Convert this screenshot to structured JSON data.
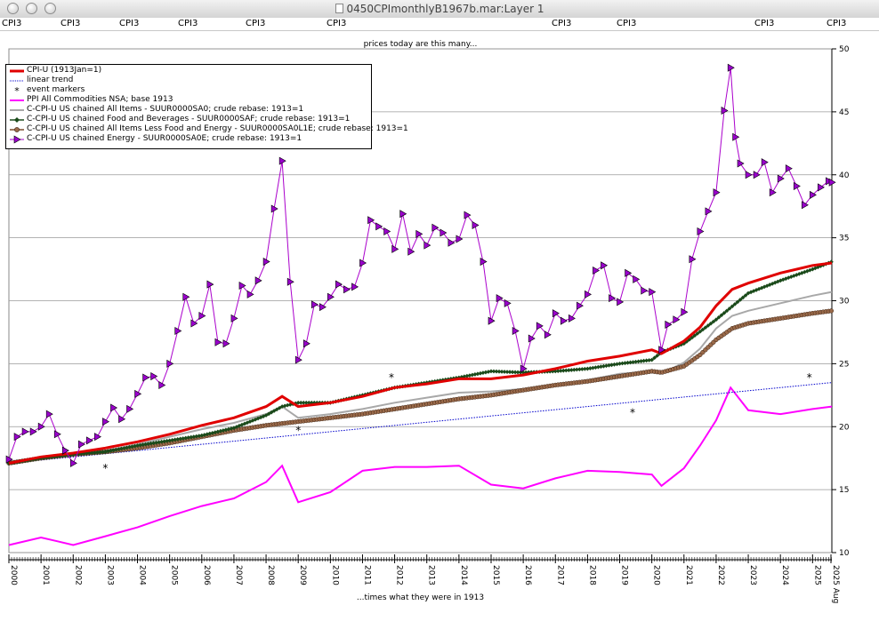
{
  "window": {
    "title": "0450CPImonthlyB1967b.mar:Layer 1",
    "buttons": [
      "close",
      "minimize",
      "zoom"
    ]
  },
  "ruler_labels": [
    "CPI3",
    "CPI3",
    "CPI3",
    "CPI3",
    "CPI3",
    "CPI3",
    "CPI3",
    "CPI3",
    "CPI3",
    "CPI3"
  ],
  "colors": {
    "cpi_u": "#e00000",
    "trend": "#0000cc",
    "ppi": "#ff00ff",
    "all_items": "#a8a8a8",
    "food": "#1a4a1a",
    "core": "#7a4a2a",
    "energy": "#aa00cc",
    "grid": "#9a9a9a"
  },
  "chart_data": {
    "type": "line",
    "title": "prices today are this many...",
    "xlabel": "...times what they were in 1913",
    "ylabel": "",
    "xlim": [
      2000.0,
      2025.6
    ],
    "ylim": [
      10,
      50
    ],
    "yticks": [
      10,
      15,
      20,
      25,
      30,
      35,
      40,
      45,
      50
    ],
    "xticks": [
      "2000",
      "2001",
      "2002",
      "2003",
      "2004",
      "2005",
      "2006",
      "2007",
      "2008",
      "2009",
      "2010",
      "2011",
      "2012",
      "2013",
      "2014",
      "2015",
      "2016",
      "2017",
      "2018",
      "2019",
      "2020",
      "2021",
      "2022",
      "2023",
      "2024",
      "2025",
      "2025 Aug"
    ],
    "legend_position": "top-left",
    "series": [
      {
        "name": "CPI-U (1913Jan=1)",
        "marker": "none",
        "points": [
          [
            2000,
            17.1
          ],
          [
            2001,
            17.6
          ],
          [
            2002,
            17.9
          ],
          [
            2003,
            18.3
          ],
          [
            2004,
            18.8
          ],
          [
            2005,
            19.4
          ],
          [
            2006,
            20.1
          ],
          [
            2007,
            20.7
          ],
          [
            2008,
            21.6
          ],
          [
            2008.5,
            22.4
          ],
          [
            2009,
            21.6
          ],
          [
            2010,
            21.9
          ],
          [
            2011,
            22.4
          ],
          [
            2012,
            23.1
          ],
          [
            2013,
            23.4
          ],
          [
            2014,
            23.8
          ],
          [
            2015,
            23.8
          ],
          [
            2016,
            24.1
          ],
          [
            2017,
            24.6
          ],
          [
            2018,
            25.2
          ],
          [
            2019,
            25.6
          ],
          [
            2020,
            26.1
          ],
          [
            2020.3,
            25.8
          ],
          [
            2021,
            26.8
          ],
          [
            2021.5,
            27.9
          ],
          [
            2022,
            29.6
          ],
          [
            2022.5,
            30.9
          ],
          [
            2023,
            31.4
          ],
          [
            2024,
            32.2
          ],
          [
            2025,
            32.8
          ],
          [
            2025.6,
            33.0
          ]
        ]
      },
      {
        "name": "linear trend",
        "marker": "none",
        "points": [
          [
            2000,
            17.1
          ],
          [
            2025.6,
            23.5
          ]
        ]
      },
      {
        "name": "event markers",
        "marker": "asterisk",
        "points": [
          [
            2003.0,
            16.7
          ],
          [
            2009.0,
            19.7
          ],
          [
            2011.9,
            23.9
          ],
          [
            2019.4,
            21.1
          ],
          [
            2024.9,
            23.9
          ]
        ]
      },
      {
        "name": "PPI All Commodities NSA; base 1913",
        "marker": "none",
        "points": [
          [
            2000,
            10.6
          ],
          [
            2001,
            11.2
          ],
          [
            2001.5,
            10.9
          ],
          [
            2002,
            10.6
          ],
          [
            2003,
            11.3
          ],
          [
            2004,
            12.0
          ],
          [
            2005,
            12.9
          ],
          [
            2006,
            13.7
          ],
          [
            2007,
            14.3
          ],
          [
            2008,
            15.6
          ],
          [
            2008.5,
            16.9
          ],
          [
            2009,
            14.0
          ],
          [
            2010,
            14.8
          ],
          [
            2011,
            16.5
          ],
          [
            2012,
            16.8
          ],
          [
            2013,
            16.8
          ],
          [
            2014,
            16.9
          ],
          [
            2015,
            15.4
          ],
          [
            2016,
            15.1
          ],
          [
            2017,
            15.9
          ],
          [
            2018,
            16.5
          ],
          [
            2019,
            16.4
          ],
          [
            2020,
            16.2
          ],
          [
            2020.3,
            15.3
          ],
          [
            2021,
            16.7
          ],
          [
            2021.5,
            18.5
          ],
          [
            2022,
            20.5
          ],
          [
            2022.45,
            23.1
          ],
          [
            2023,
            21.3
          ],
          [
            2024,
            21.0
          ],
          [
            2025,
            21.4
          ],
          [
            2025.6,
            21.6
          ]
        ]
      },
      {
        "name": "C-CPI-U US chained All Items - SUUR0000SA0; crude rebase: 1913=1",
        "marker": "none",
        "points": [
          [
            2000,
            17.1
          ],
          [
            2001,
            17.5
          ],
          [
            2002,
            17.8
          ],
          [
            2003,
            18.1
          ],
          [
            2004,
            18.6
          ],
          [
            2005,
            19.2
          ],
          [
            2006,
            19.8
          ],
          [
            2007,
            20.3
          ],
          [
            2008,
            21.0
          ],
          [
            2008.5,
            21.6
          ],
          [
            2009,
            20.7
          ],
          [
            2010,
            21.0
          ],
          [
            2011,
            21.4
          ],
          [
            2012,
            21.9
          ],
          [
            2013,
            22.3
          ],
          [
            2014,
            22.7
          ],
          [
            2015,
            22.8
          ],
          [
            2016,
            23.0
          ],
          [
            2017,
            23.3
          ],
          [
            2018,
            23.7
          ],
          [
            2019,
            24.2
          ],
          [
            2020,
            24.4
          ],
          [
            2020.3,
            24.2
          ],
          [
            2021,
            25.1
          ],
          [
            2021.5,
            26.2
          ],
          [
            2022,
            27.8
          ],
          [
            2022.5,
            28.8
          ],
          [
            2023,
            29.2
          ],
          [
            2024,
            29.8
          ],
          [
            2025,
            30.4
          ],
          [
            2025.6,
            30.7
          ]
        ]
      },
      {
        "name": "C-CPI-U US chained Food and Beverages - SUUR0000SAF; crude rebase: 1913=1",
        "marker": "diamond",
        "points": [
          [
            2000,
            17.1
          ],
          [
            2001,
            17.5
          ],
          [
            2002,
            17.8
          ],
          [
            2003,
            18.0
          ],
          [
            2004,
            18.5
          ],
          [
            2005,
            18.9
          ],
          [
            2006,
            19.3
          ],
          [
            2007,
            19.9
          ],
          [
            2008,
            20.9
          ],
          [
            2008.5,
            21.6
          ],
          [
            2009,
            21.9
          ],
          [
            2010,
            21.9
          ],
          [
            2011,
            22.5
          ],
          [
            2012,
            23.1
          ],
          [
            2013,
            23.5
          ],
          [
            2014,
            23.9
          ],
          [
            2015,
            24.4
          ],
          [
            2016,
            24.3
          ],
          [
            2017,
            24.4
          ],
          [
            2018,
            24.6
          ],
          [
            2019,
            25.0
          ],
          [
            2020,
            25.3
          ],
          [
            2020.3,
            25.9
          ],
          [
            2021,
            26.6
          ],
          [
            2022,
            28.5
          ],
          [
            2023,
            30.6
          ],
          [
            2024,
            31.6
          ],
          [
            2025,
            32.5
          ],
          [
            2025.6,
            33.1
          ]
        ]
      },
      {
        "name": "C-CPI-U US chained All Items Less Food and Energy - SUUR0000SA0L1E; crude rebase: 1913=1",
        "marker": "circle",
        "points": [
          [
            2000,
            17.1
          ],
          [
            2001,
            17.5
          ],
          [
            2002,
            17.8
          ],
          [
            2003,
            18.0
          ],
          [
            2004,
            18.3
          ],
          [
            2005,
            18.7
          ],
          [
            2006,
            19.2
          ],
          [
            2007,
            19.7
          ],
          [
            2008,
            20.1
          ],
          [
            2009,
            20.4
          ],
          [
            2010,
            20.7
          ],
          [
            2011,
            21.0
          ],
          [
            2012,
            21.4
          ],
          [
            2013,
            21.8
          ],
          [
            2014,
            22.2
          ],
          [
            2015,
            22.5
          ],
          [
            2016,
            22.9
          ],
          [
            2017,
            23.3
          ],
          [
            2018,
            23.6
          ],
          [
            2019,
            24.0
          ],
          [
            2020,
            24.4
          ],
          [
            2020.3,
            24.3
          ],
          [
            2021,
            24.8
          ],
          [
            2021.5,
            25.7
          ],
          [
            2022,
            26.9
          ],
          [
            2022.5,
            27.8
          ],
          [
            2023,
            28.2
          ],
          [
            2024,
            28.6
          ],
          [
            2025,
            29.0
          ],
          [
            2025.6,
            29.2
          ]
        ]
      },
      {
        "name": "C-CPI-U US chained Energy - SUUR0000SA0E; crude rebase: 1913=1",
        "marker": "triangle",
        "points": [
          [
            2000,
            17.4
          ],
          [
            2000.25,
            19.2
          ],
          [
            2000.5,
            19.6
          ],
          [
            2000.75,
            19.6
          ],
          [
            2001.0,
            20.0
          ],
          [
            2001.25,
            21.0
          ],
          [
            2001.5,
            19.4
          ],
          [
            2001.75,
            18.1
          ],
          [
            2002.0,
            17.1
          ],
          [
            2002.25,
            18.6
          ],
          [
            2002.5,
            18.9
          ],
          [
            2002.75,
            19.2
          ],
          [
            2003.0,
            20.4
          ],
          [
            2003.25,
            21.5
          ],
          [
            2003.5,
            20.6
          ],
          [
            2003.75,
            21.4
          ],
          [
            2004.0,
            22.6
          ],
          [
            2004.25,
            23.9
          ],
          [
            2004.5,
            24.0
          ],
          [
            2004.75,
            23.3
          ],
          [
            2005.0,
            25.0
          ],
          [
            2005.25,
            27.6
          ],
          [
            2005.5,
            30.3
          ],
          [
            2005.75,
            28.2
          ],
          [
            2006.0,
            28.8
          ],
          [
            2006.25,
            31.3
          ],
          [
            2006.5,
            26.7
          ],
          [
            2006.75,
            26.6
          ],
          [
            2007.0,
            28.6
          ],
          [
            2007.25,
            31.2
          ],
          [
            2007.5,
            30.5
          ],
          [
            2007.75,
            31.6
          ],
          [
            2008.0,
            33.1
          ],
          [
            2008.25,
            37.3
          ],
          [
            2008.5,
            41.1
          ],
          [
            2008.75,
            31.5
          ],
          [
            2009.0,
            25.3
          ],
          [
            2009.25,
            26.6
          ],
          [
            2009.5,
            29.7
          ],
          [
            2009.75,
            29.5
          ],
          [
            2010.0,
            30.3
          ],
          [
            2010.25,
            31.3
          ],
          [
            2010.5,
            30.9
          ],
          [
            2010.75,
            31.1
          ],
          [
            2011.0,
            33.0
          ],
          [
            2011.25,
            36.4
          ],
          [
            2011.5,
            35.9
          ],
          [
            2011.75,
            35.5
          ],
          [
            2012.0,
            34.1
          ],
          [
            2012.25,
            36.9
          ],
          [
            2012.5,
            33.9
          ],
          [
            2012.75,
            35.3
          ],
          [
            2013.0,
            34.4
          ],
          [
            2013.25,
            35.8
          ],
          [
            2013.5,
            35.4
          ],
          [
            2013.75,
            34.6
          ],
          [
            2014.0,
            34.9
          ],
          [
            2014.25,
            36.8
          ],
          [
            2014.5,
            36.0
          ],
          [
            2014.75,
            33.1
          ],
          [
            2015.0,
            28.4
          ],
          [
            2015.25,
            30.2
          ],
          [
            2015.5,
            29.8
          ],
          [
            2015.75,
            27.6
          ],
          [
            2016.0,
            24.6
          ],
          [
            2016.25,
            27.0
          ],
          [
            2016.5,
            28.0
          ],
          [
            2016.75,
            27.3
          ],
          [
            2017.0,
            29.0
          ],
          [
            2017.25,
            28.4
          ],
          [
            2017.5,
            28.6
          ],
          [
            2017.75,
            29.6
          ],
          [
            2018.0,
            30.5
          ],
          [
            2018.25,
            32.4
          ],
          [
            2018.5,
            32.8
          ],
          [
            2018.75,
            30.2
          ],
          [
            2019.0,
            29.9
          ],
          [
            2019.25,
            32.2
          ],
          [
            2019.5,
            31.7
          ],
          [
            2019.75,
            30.8
          ],
          [
            2020.0,
            30.7
          ],
          [
            2020.3,
            26.1
          ],
          [
            2020.5,
            28.1
          ],
          [
            2020.75,
            28.5
          ],
          [
            2021.0,
            29.1
          ],
          [
            2021.25,
            33.3
          ],
          [
            2021.5,
            35.5
          ],
          [
            2021.75,
            37.1
          ],
          [
            2022.0,
            38.6
          ],
          [
            2022.25,
            45.1
          ],
          [
            2022.45,
            48.5
          ],
          [
            2022.6,
            43.0
          ],
          [
            2022.75,
            40.9
          ],
          [
            2023.0,
            40.0
          ],
          [
            2023.25,
            40.0
          ],
          [
            2023.5,
            41.0
          ],
          [
            2023.75,
            38.6
          ],
          [
            2024.0,
            39.7
          ],
          [
            2024.25,
            40.5
          ],
          [
            2024.5,
            39.1
          ],
          [
            2024.75,
            37.6
          ],
          [
            2025.0,
            38.4
          ],
          [
            2025.25,
            39.0
          ],
          [
            2025.5,
            39.5
          ],
          [
            2025.6,
            39.4
          ]
        ]
      }
    ]
  }
}
